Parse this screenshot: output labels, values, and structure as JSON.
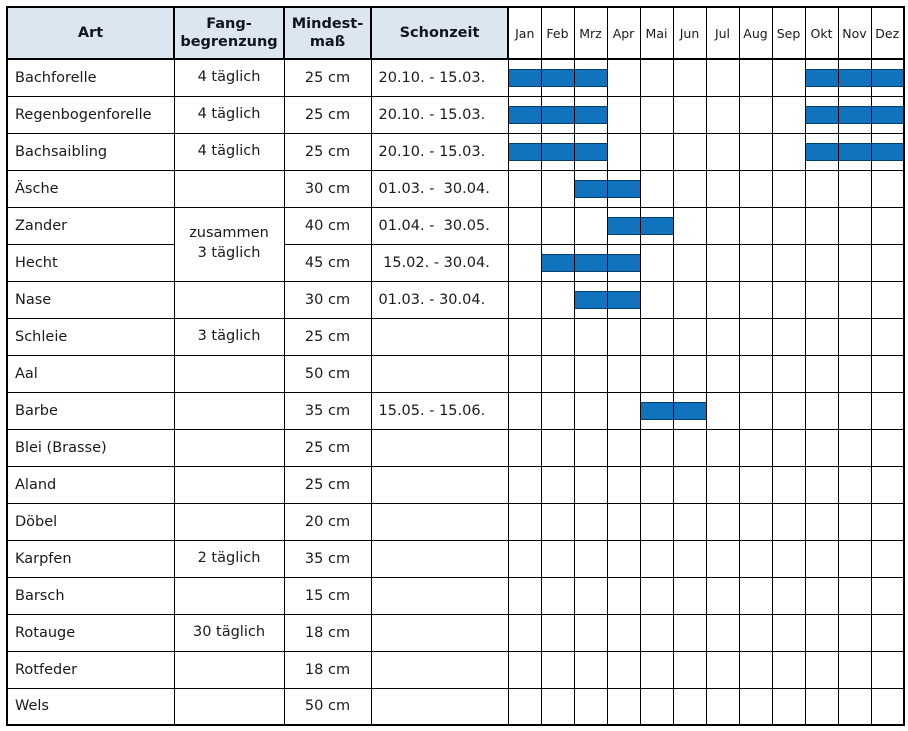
{
  "chart_data": {
    "type": "table",
    "subtype": "gantt-months",
    "description_of_encoding": "closed_months are inclusive month-index ranges (1=Jan ... 12=Dez) shown as blue bars",
    "column_headers": {
      "art": "Art",
      "fang": "Fang-\nbegrenzung",
      "mindest": "Mindest-\nmaß",
      "schonzeit": "Schonzeit"
    },
    "month_headers": [
      "Jan",
      "Feb",
      "Mrz",
      "Apr",
      "Mai",
      "Jun",
      "Jul",
      "Aug",
      "Sep",
      "Okt",
      "Nov",
      "Dez"
    ],
    "rows": [
      {
        "art": "Bachforelle",
        "fang": "4 täglich",
        "mindestmass": "25 cm",
        "schonzeit": "20.10. - 15.03.",
        "closed_months": [
          [
            1,
            3
          ],
          [
            10,
            12
          ]
        ]
      },
      {
        "art": "Regenbogenforelle",
        "fang": "4 täglich",
        "mindestmass": "25 cm",
        "schonzeit": "20.10. - 15.03.",
        "closed_months": [
          [
            1,
            3
          ],
          [
            10,
            12
          ]
        ]
      },
      {
        "art": "Bachsaibling",
        "fang": "4 täglich",
        "mindestmass": "25 cm",
        "schonzeit": "20.10. - 15.03.",
        "closed_months": [
          [
            1,
            3
          ],
          [
            10,
            12
          ]
        ]
      },
      {
        "art": "Äsche",
        "fang": "",
        "mindestmass": "30 cm",
        "schonzeit": "01.03. -  30.04.",
        "closed_months": [
          [
            3,
            4
          ]
        ]
      },
      {
        "art": "Zander",
        "fang": "zusammen\n3 täglich",
        "fang_rowspan": 2,
        "mindestmass": "40 cm",
        "schonzeit": "01.04. -  30.05.",
        "closed_months": [
          [
            4,
            5
          ]
        ]
      },
      {
        "art": "Hecht",
        "fang_merged": true,
        "mindestmass": "45 cm",
        "schonzeit": " 15.02. - 30.04.",
        "closed_months": [
          [
            2,
            4
          ]
        ]
      },
      {
        "art": "Nase",
        "fang": "",
        "mindestmass": "30 cm",
        "schonzeit": "01.03. - 30.04.",
        "closed_months": [
          [
            3,
            4
          ]
        ]
      },
      {
        "art": "Schleie",
        "fang": "3 täglich",
        "mindestmass": "25 cm",
        "schonzeit": "",
        "closed_months": []
      },
      {
        "art": "Aal",
        "fang": "",
        "mindestmass": "50 cm",
        "schonzeit": "",
        "closed_months": []
      },
      {
        "art": "Barbe",
        "fang": "",
        "mindestmass": "35 cm",
        "schonzeit": "15.05. - 15.06.",
        "closed_months": [
          [
            5,
            6
          ]
        ]
      },
      {
        "art": "Blei (Brasse)",
        "fang": "",
        "mindestmass": "25 cm",
        "schonzeit": "",
        "closed_months": []
      },
      {
        "art": "Aland",
        "fang": "",
        "mindestmass": "25 cm",
        "schonzeit": "",
        "closed_months": []
      },
      {
        "art": "Döbel",
        "fang": "",
        "mindestmass": "20 cm",
        "schonzeit": "",
        "closed_months": []
      },
      {
        "art": "Karpfen",
        "fang": "2 täglich",
        "mindestmass": "35 cm",
        "schonzeit": "",
        "closed_months": []
      },
      {
        "art": "Barsch",
        "fang": "",
        "mindestmass": "15 cm",
        "schonzeit": "",
        "closed_months": []
      },
      {
        "art": "Rotauge",
        "fang": "30 täglich",
        "mindestmass": "18 cm",
        "schonzeit": "",
        "closed_months": []
      },
      {
        "art": "Rotfeder",
        "fang": "",
        "mindestmass": "18 cm",
        "schonzeit": "",
        "closed_months": []
      },
      {
        "art": "Wels",
        "fang": "",
        "mindestmass": "50 cm",
        "schonzeit": "",
        "closed_months": []
      }
    ],
    "colors": {
      "bar": "#1173bd",
      "bar_edge": "#04406e",
      "header_bg": "#dce6f1",
      "header_text": "#10151f",
      "body_text": "#1a1a1a",
      "border": "#000000"
    }
  }
}
